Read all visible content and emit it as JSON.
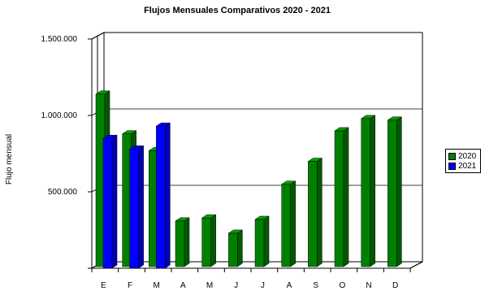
{
  "chart_data": {
    "type": "bar",
    "title": "Flujos Mensuales Comparativos 2020 - 2021",
    "ylabel": "Flujo mensual",
    "xlabel": "",
    "categories": [
      "E",
      "F",
      "M",
      "A",
      "M",
      "J",
      "J",
      "A",
      "S",
      "O",
      "N",
      "D"
    ],
    "series": [
      {
        "name": "2020",
        "color": "#008000",
        "values": [
          1150000,
          890000,
          780000,
          320000,
          340000,
          240000,
          330000,
          560000,
          710000,
          910000,
          990000,
          980000
        ]
      },
      {
        "name": "2021",
        "color": "#0000ff",
        "values": [
          850000,
          780000,
          930000,
          null,
          null,
          null,
          null,
          null,
          null,
          null,
          null,
          null
        ]
      }
    ],
    "yticks": [
      500000,
      1000000,
      1500000
    ],
    "ytick_labels": [
      "500.000",
      "1.000.000",
      "1.500.000"
    ],
    "ylim": [
      0,
      1500000
    ],
    "grid": true,
    "legend_position": "right"
  }
}
